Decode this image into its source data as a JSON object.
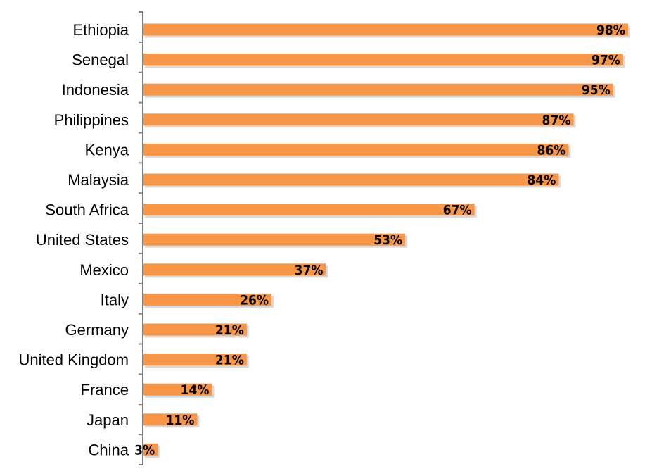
{
  "chart_data": {
    "type": "bar",
    "orientation": "horizontal",
    "categories": [
      "Ethiopia",
      "Senegal",
      "Indonesia",
      "Philippines",
      "Kenya",
      "Malaysia",
      "South Africa",
      "United States",
      "Mexico",
      "Italy",
      "Germany",
      "United Kingdom",
      "France",
      "Japan",
      "China"
    ],
    "values": [
      98,
      97,
      95,
      87,
      86,
      84,
      67,
      53,
      37,
      26,
      21,
      21,
      14,
      11,
      3
    ],
    "value_labels": [
      "98%",
      "97%",
      "95%",
      "87%",
      "86%",
      "84%",
      "67%",
      "53%",
      "37%",
      "26%",
      "21%",
      "21%",
      "14%",
      "11%",
      "3%"
    ],
    "value_unit": "%",
    "title": "",
    "xlabel": "",
    "ylabel": "",
    "xlim": [
      0,
      100
    ],
    "grid": false,
    "legend": "none",
    "bar_color": "#F79646"
  }
}
